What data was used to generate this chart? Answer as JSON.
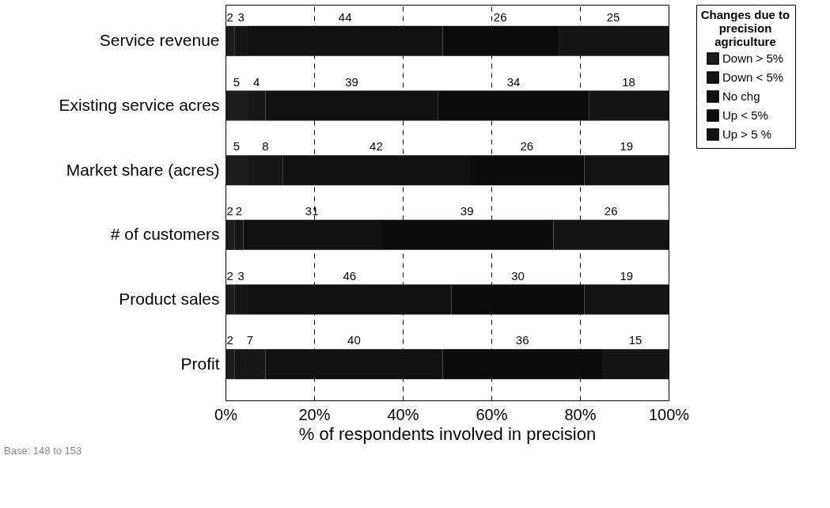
{
  "chart_data": {
    "type": "bar",
    "orientation": "horizontal",
    "stacked": true,
    "data_labels": true,
    "categories": [
      "Service revenue",
      "Existing service acres",
      "Market share (acres)",
      "# of customers",
      "Product sales",
      "Profit"
    ],
    "series": [
      {
        "name": "Down > 5%",
        "color": "#1c1c1c",
        "values": [
          2,
          5,
          5,
          2,
          2,
          2
        ]
      },
      {
        "name": "Down < 5%",
        "color": "#161616",
        "values": [
          3,
          4,
          8,
          2,
          3,
          7
        ]
      },
      {
        "name": "No chg",
        "color": "#111111",
        "values": [
          44,
          39,
          42,
          31,
          46,
          40
        ]
      },
      {
        "name": "Up < 5%",
        "color": "#0c0c0c",
        "values": [
          26,
          34,
          26,
          39,
          30,
          36
        ]
      },
      {
        "name": "Up > 5 %",
        "color": "#141414",
        "values": [
          25,
          18,
          19,
          26,
          19,
          15
        ]
      }
    ],
    "xlim": [
      0,
      100
    ],
    "xticks": [
      {
        "value": 0,
        "label": "0%"
      },
      {
        "value": 20,
        "label": "20%"
      },
      {
        "value": 40,
        "label": "40%"
      },
      {
        "value": 60,
        "label": "60%"
      },
      {
        "value": 80,
        "label": "80%"
      },
      {
        "value": 100,
        "label": "100%"
      }
    ],
    "xlabel": "% of respondents involved in precision",
    "legend_title": "Changes due to precision agriculture",
    "legend": "right",
    "grid": "x",
    "annotations": [
      "Base:  148 to 153"
    ]
  }
}
